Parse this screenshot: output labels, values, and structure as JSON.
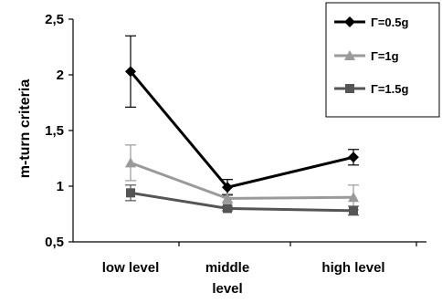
{
  "chart_data": {
    "type": "line",
    "ylabel": "m-turn criteria",
    "xlabel": "",
    "categories": [
      [
        "low level"
      ],
      [
        "middle",
        "level"
      ],
      [
        "high level"
      ]
    ],
    "ylim": [
      0.5,
      2.5
    ],
    "yticks": [
      "0,5",
      "1",
      "1,5",
      "2",
      "2,5"
    ],
    "ytick_values": [
      0.5,
      1,
      1.5,
      2,
      2.5
    ],
    "grid": false,
    "legend_position": "top-right",
    "series": [
      {
        "name": "Γ=0.5g",
        "color": "#000000",
        "marker": "diamond",
        "values": [
          2.03,
          0.99,
          1.26
        ],
        "error": [
          0.32,
          0.07,
          0.07
        ]
      },
      {
        "name": "Γ=1g",
        "color": "#9a9a9a",
        "marker": "triangle",
        "values": [
          1.21,
          0.89,
          0.9
        ],
        "error": [
          0.16,
          0.04,
          0.11
        ]
      },
      {
        "name": "Γ=1.5g",
        "color": "#555555",
        "marker": "square",
        "values": [
          0.94,
          0.8,
          0.78
        ],
        "error": [
          0.07,
          0.02,
          0.04
        ]
      }
    ]
  }
}
